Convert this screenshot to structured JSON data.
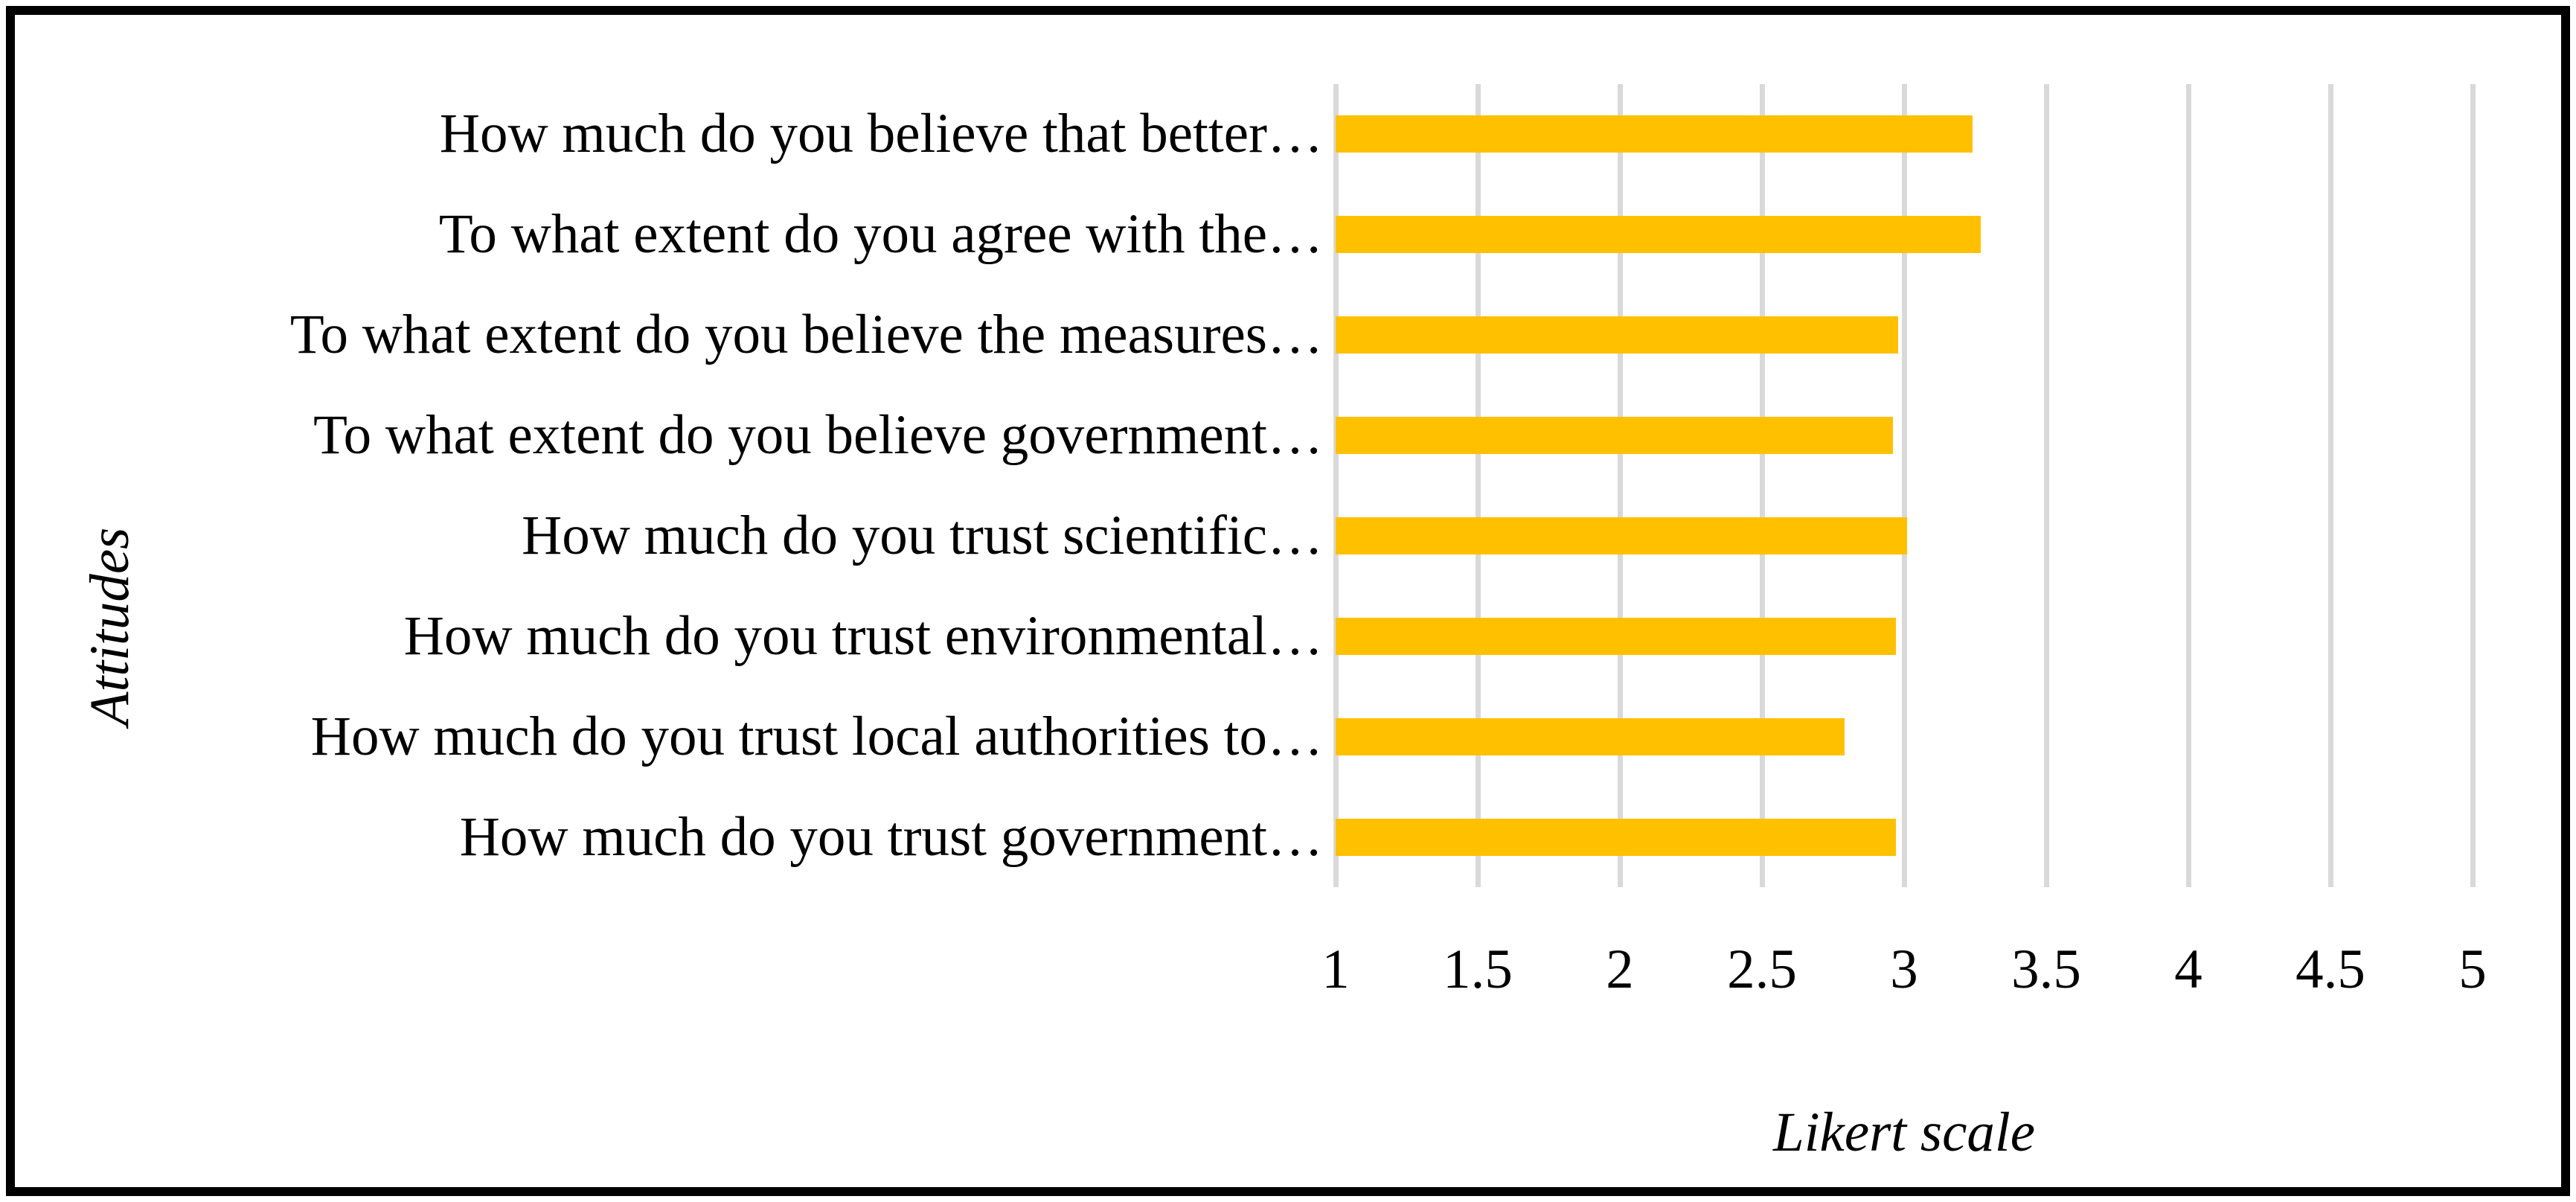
{
  "figure": {
    "background_color": "#FFFFFF",
    "frame_color": "#000000"
  },
  "chart_data": {
    "type": "bar",
    "orientation": "horizontal",
    "title": "",
    "xlabel": "Likert scale",
    "ylabel": "Attitudes",
    "categories": [
      "How much do you believe that better…",
      "To what extent do you agree with the…",
      "To what extent do you believe the measures…",
      "To what extent do you believe government…",
      "How much do you trust scientific…",
      "How much do you trust environmental…",
      "How much do you trust local authorities to…",
      "How much do you trust government…"
    ],
    "values": [
      3.24,
      3.27,
      2.98,
      2.96,
      3.01,
      2.97,
      2.79,
      2.97
    ],
    "xlim": [
      1,
      5
    ],
    "xticks": [
      1,
      1.5,
      2,
      2.5,
      3,
      3.5,
      4,
      4.5,
      5
    ],
    "xtick_labels": [
      "1",
      "1.5",
      "2",
      "2.5",
      "3",
      "3.5",
      "4",
      "4.5",
      "5"
    ],
    "bar_color": "#FFC000",
    "gridline_color": "#D9D9D9",
    "grid": true,
    "legend": false
  }
}
